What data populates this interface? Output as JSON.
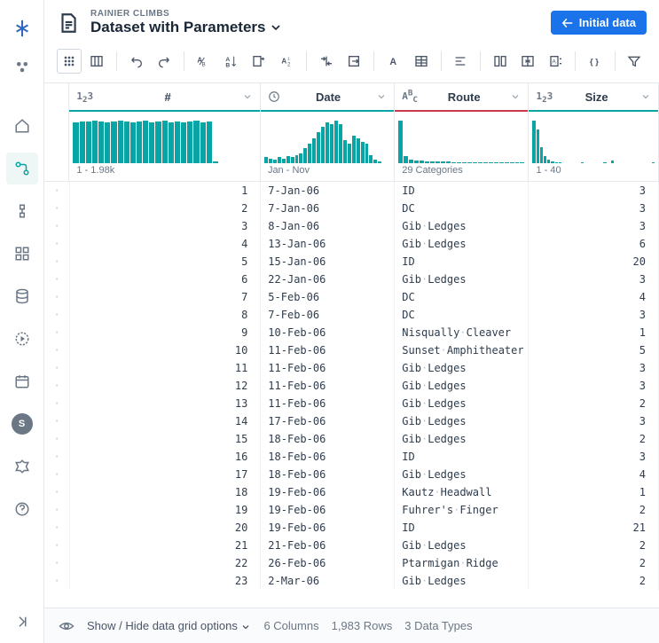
{
  "breadcrumb": "RAINIER CLIMBS",
  "title": "Dataset with Parameters",
  "primary_button": "Initial data",
  "sidebar": {
    "avatar": "S"
  },
  "columns": [
    {
      "name": "#",
      "type": "123",
      "histo_caption": "1 - 1.98k",
      "histo": [
        44,
        45,
        45,
        46,
        45,
        44,
        45,
        46,
        45,
        44,
        45,
        46,
        44,
        45,
        46,
        44,
        45,
        44,
        45,
        46,
        44,
        45,
        2,
        0,
        0,
        0,
        0,
        0,
        0
      ]
    },
    {
      "name": "Date",
      "type": "clock",
      "histo_caption": "Jan - Nov",
      "histo": [
        6,
        5,
        4,
        6,
        5,
        7,
        6,
        8,
        10,
        16,
        20,
        26,
        32,
        38,
        42,
        40,
        44,
        40,
        24,
        20,
        28,
        26,
        22,
        20,
        8,
        4,
        2,
        0,
        0
      ]
    },
    {
      "name": "Route",
      "type": "ABC",
      "histo_caption": "29 Categories",
      "histo": [
        48,
        8,
        4,
        3,
        3,
        2,
        2,
        2,
        2,
        2,
        1,
        1,
        1,
        1,
        1,
        1,
        1,
        1,
        1,
        1,
        1,
        1,
        1,
        1
      ]
    },
    {
      "name": "Size",
      "type": "123",
      "histo_caption": "1 - 40",
      "histo": [
        48,
        38,
        18,
        8,
        4,
        2,
        1,
        1,
        0,
        0,
        0,
        0,
        0,
        1,
        0,
        0,
        0,
        0,
        0,
        1,
        0,
        3,
        0,
        0,
        0,
        0,
        0,
        0,
        0,
        0,
        0,
        0,
        1
      ]
    }
  ],
  "rows": [
    {
      "i": 1,
      "date": "7-Jan-06",
      "route": "ID",
      "size": 3
    },
    {
      "i": 2,
      "date": "7-Jan-06",
      "route": "DC",
      "size": 3
    },
    {
      "i": 3,
      "date": "8-Jan-06",
      "route": "Gib Ledges",
      "size": 3
    },
    {
      "i": 4,
      "date": "13-Jan-06",
      "route": "Gib Ledges",
      "size": 6
    },
    {
      "i": 5,
      "date": "15-Jan-06",
      "route": "ID",
      "size": 20
    },
    {
      "i": 6,
      "date": "22-Jan-06",
      "route": "Gib Ledges",
      "size": 3
    },
    {
      "i": 7,
      "date": "5-Feb-06",
      "route": "DC",
      "size": 4
    },
    {
      "i": 8,
      "date": "7-Feb-06",
      "route": "DC",
      "size": 3
    },
    {
      "i": 9,
      "date": "10-Feb-06",
      "route": "Nisqually Cleaver",
      "size": 1
    },
    {
      "i": 10,
      "date": "11-Feb-06",
      "route": "Sunset Amphitheater",
      "size": 5
    },
    {
      "i": 11,
      "date": "11-Feb-06",
      "route": "Gib Ledges",
      "size": 3
    },
    {
      "i": 12,
      "date": "11-Feb-06",
      "route": "Gib Ledges",
      "size": 3
    },
    {
      "i": 13,
      "date": "11-Feb-06",
      "route": "Gib Ledges",
      "size": 2
    },
    {
      "i": 14,
      "date": "17-Feb-06",
      "route": "Gib Ledges",
      "size": 3
    },
    {
      "i": 15,
      "date": "18-Feb-06",
      "route": "Gib Ledges",
      "size": 2
    },
    {
      "i": 16,
      "date": "18-Feb-06",
      "route": "ID",
      "size": 3
    },
    {
      "i": 17,
      "date": "18-Feb-06",
      "route": "Gib Ledges",
      "size": 4
    },
    {
      "i": 18,
      "date": "19-Feb-06",
      "route": "Kautz Headwall",
      "size": 1
    },
    {
      "i": 19,
      "date": "19-Feb-06",
      "route": "Fuhrer's Finger",
      "size": 2
    },
    {
      "i": 20,
      "date": "19-Feb-06",
      "route": "ID",
      "size": 21
    },
    {
      "i": 21,
      "date": "21-Feb-06",
      "route": "Gib Ledges",
      "size": 2
    },
    {
      "i": 22,
      "date": "26-Feb-06",
      "route": "Ptarmigan Ridge",
      "size": 2
    },
    {
      "i": 23,
      "date": "2-Mar-06",
      "route": "Gib Ledges",
      "size": 2
    }
  ],
  "footer": {
    "toggle": "Show / Hide data grid options",
    "cols": "6 Columns",
    "rows": "1,983 Rows",
    "types": "3 Data Types"
  },
  "colors": {
    "teal": "#09a5a5",
    "accent_route": "#c8394a",
    "primary": "#1a73e8"
  }
}
